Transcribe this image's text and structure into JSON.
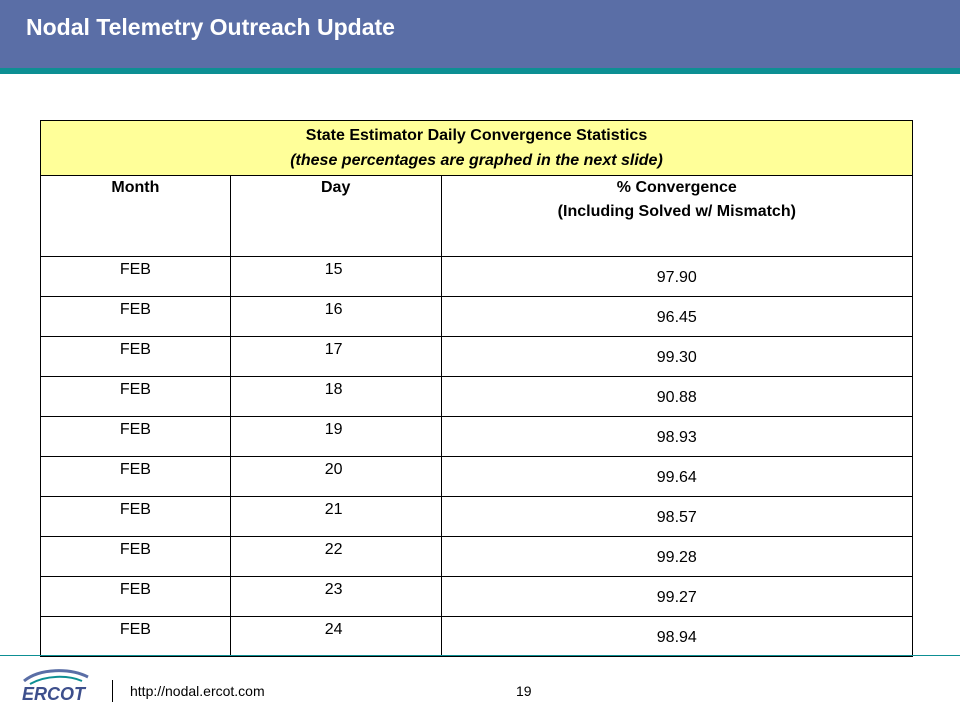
{
  "header": {
    "title": "Nodal Telemetry Outreach Update",
    "bg_color": "#5a6ea6",
    "stripe_color": "#0d8f93"
  },
  "table": {
    "title": "State Estimator Daily Convergence Statistics",
    "subtitle": "(these percentages are graphed in the next slide)",
    "caption_bg": "#ffff99",
    "columns": {
      "month": "Month",
      "day": "Day",
      "convergence_line1": "% Convergence",
      "convergence_line2": "(Including Solved w/ Mismatch)"
    },
    "rows": [
      {
        "month": "FEB",
        "day": "15",
        "convergence": "97.90"
      },
      {
        "month": "FEB",
        "day": "16",
        "convergence": "96.45"
      },
      {
        "month": "FEB",
        "day": "17",
        "convergence": "99.30"
      },
      {
        "month": "FEB",
        "day": "18",
        "convergence": "90.88"
      },
      {
        "month": "FEB",
        "day": "19",
        "convergence": "98.93"
      },
      {
        "month": "FEB",
        "day": "20",
        "convergence": "99.64"
      },
      {
        "month": "FEB",
        "day": "21",
        "convergence": "98.57"
      },
      {
        "month": "FEB",
        "day": "22",
        "convergence": "99.28"
      },
      {
        "month": "FEB",
        "day": "23",
        "convergence": "99.27"
      },
      {
        "month": "FEB",
        "day": "24",
        "convergence": "98.94"
      }
    ]
  },
  "footer": {
    "logo": "ERCOT",
    "url": "http://nodal.ercot.com",
    "page_number": "19"
  }
}
